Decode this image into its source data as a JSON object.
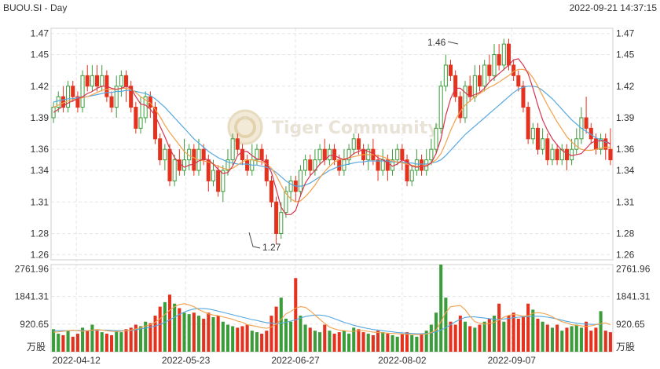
{
  "header": {
    "symbol": "BUOU.SI - Day",
    "timestamp": "2022-09-21 14:37:15"
  },
  "watermark": "Tiger Community",
  "price_axis": {
    "ticks": [
      "1.47",
      "1.45",
      "1.42",
      "1.39",
      "1.36",
      "1.34",
      "1.31",
      "1.28",
      "1.26"
    ]
  },
  "volume_axis": {
    "ticks": [
      "2761.96",
      "1841.31",
      "920.65"
    ],
    "unit": "万股"
  },
  "date_axis": {
    "ticks": [
      "2022-04-12",
      "2022-05-23",
      "2022-06-27",
      "2022-08-02",
      "2022-09-07"
    ]
  },
  "annotations": {
    "high_label": "1.46",
    "low_label": "1.27"
  },
  "colors": {
    "up": "#3a9d3a",
    "down": "#e4321e",
    "ma5": "#d7344e",
    "ma10": "#f2a04a",
    "ma20": "#55a8e0"
  },
  "chart_data": {
    "type": "candlestick",
    "title": "BUOU.SI - Day",
    "price_range": [
      1.255,
      1.475
    ],
    "volume_range": [
      0,
      2900
    ],
    "volume_unit": "万股",
    "candles": [
      [
        1.39,
        1.4,
        1.385,
        1.405,
        750
      ],
      [
        1.4,
        1.41,
        1.395,
        1.415,
        600
      ],
      [
        1.41,
        1.4,
        1.395,
        1.42,
        550
      ],
      [
        1.4,
        1.42,
        1.395,
        1.425,
        700
      ],
      [
        1.42,
        1.41,
        1.405,
        1.425,
        500
      ],
      [
        1.41,
        1.4,
        1.395,
        1.415,
        600
      ],
      [
        1.4,
        1.43,
        1.395,
        1.435,
        800
      ],
      [
        1.43,
        1.42,
        1.415,
        1.44,
        700
      ],
      [
        1.42,
        1.43,
        1.415,
        1.44,
        900
      ],
      [
        1.43,
        1.42,
        1.415,
        1.44,
        700
      ],
      [
        1.42,
        1.43,
        1.415,
        1.44,
        650
      ],
      [
        1.43,
        1.41,
        1.405,
        1.435,
        600
      ],
      [
        1.41,
        1.4,
        1.395,
        1.415,
        550
      ],
      [
        1.4,
        1.42,
        1.39,
        1.43,
        700
      ],
      [
        1.42,
        1.43,
        1.41,
        1.435,
        650
      ],
      [
        1.43,
        1.42,
        1.405,
        1.435,
        750
      ],
      [
        1.42,
        1.4,
        1.395,
        1.425,
        800
      ],
      [
        1.4,
        1.38,
        1.375,
        1.405,
        900
      ],
      [
        1.38,
        1.39,
        1.375,
        1.41,
        850
      ],
      [
        1.39,
        1.41,
        1.385,
        1.415,
        1000
      ],
      [
        1.41,
        1.4,
        1.39,
        1.415,
        950
      ],
      [
        1.4,
        1.37,
        1.365,
        1.405,
        1200
      ],
      [
        1.37,
        1.35,
        1.345,
        1.375,
        1500
      ],
      [
        1.35,
        1.36,
        1.34,
        1.365,
        1650
      ],
      [
        1.36,
        1.33,
        1.325,
        1.365,
        1900
      ],
      [
        1.33,
        1.35,
        1.325,
        1.355,
        1600
      ],
      [
        1.35,
        1.34,
        1.335,
        1.36,
        1450
      ],
      [
        1.34,
        1.35,
        1.335,
        1.37,
        1300
      ],
      [
        1.35,
        1.36,
        1.34,
        1.365,
        1250
      ],
      [
        1.36,
        1.34,
        1.335,
        1.365,
        1300
      ],
      [
        1.34,
        1.36,
        1.335,
        1.37,
        1200
      ],
      [
        1.36,
        1.35,
        1.345,
        1.365,
        1100
      ],
      [
        1.35,
        1.33,
        1.32,
        1.355,
        1300
      ],
      [
        1.33,
        1.34,
        1.325,
        1.35,
        1150
      ],
      [
        1.34,
        1.32,
        1.315,
        1.345,
        1200
      ],
      [
        1.32,
        1.34,
        1.31,
        1.345,
        1000
      ],
      [
        1.34,
        1.35,
        1.335,
        1.36,
        900
      ],
      [
        1.35,
        1.37,
        1.345,
        1.375,
        850
      ],
      [
        1.37,
        1.36,
        1.355,
        1.375,
        800
      ],
      [
        1.36,
        1.35,
        1.345,
        1.365,
        850
      ],
      [
        1.35,
        1.34,
        1.335,
        1.355,
        900
      ],
      [
        1.34,
        1.35,
        1.335,
        1.365,
        700
      ],
      [
        1.35,
        1.36,
        1.345,
        1.365,
        650
      ],
      [
        1.36,
        1.35,
        1.345,
        1.365,
        600
      ],
      [
        1.35,
        1.33,
        1.325,
        1.355,
        700
      ],
      [
        1.33,
        1.31,
        1.305,
        1.335,
        1200
      ],
      [
        1.31,
        1.28,
        1.27,
        1.315,
        1500
      ],
      [
        1.28,
        1.3,
        1.275,
        1.31,
        1800
      ],
      [
        1.3,
        1.32,
        1.295,
        1.325,
        1100
      ],
      [
        1.32,
        1.33,
        1.31,
        1.335,
        1000
      ],
      [
        1.33,
        1.32,
        1.31,
        1.335,
        2450
      ],
      [
        1.32,
        1.34,
        1.315,
        1.345,
        1200
      ],
      [
        1.34,
        1.35,
        1.335,
        1.355,
        900
      ],
      [
        1.35,
        1.34,
        1.335,
        1.355,
        800
      ],
      [
        1.34,
        1.35,
        1.335,
        1.36,
        700
      ],
      [
        1.35,
        1.36,
        1.345,
        1.365,
        650
      ],
      [
        1.36,
        1.35,
        1.345,
        1.37,
        900
      ],
      [
        1.35,
        1.36,
        1.345,
        1.365,
        700
      ],
      [
        1.36,
        1.35,
        1.345,
        1.365,
        600
      ],
      [
        1.35,
        1.34,
        1.335,
        1.355,
        650
      ],
      [
        1.34,
        1.35,
        1.335,
        1.36,
        700
      ],
      [
        1.35,
        1.36,
        1.345,
        1.365,
        600
      ],
      [
        1.36,
        1.37,
        1.355,
        1.375,
        800
      ],
      [
        1.37,
        1.36,
        1.355,
        1.375,
        750
      ],
      [
        1.36,
        1.35,
        1.345,
        1.365,
        650
      ],
      [
        1.35,
        1.36,
        1.34,
        1.365,
        600
      ],
      [
        1.36,
        1.35,
        1.345,
        1.37,
        550
      ],
      [
        1.35,
        1.34,
        1.33,
        1.355,
        700
      ],
      [
        1.34,
        1.35,
        1.335,
        1.36,
        650
      ],
      [
        1.35,
        1.34,
        1.33,
        1.355,
        600
      ],
      [
        1.34,
        1.35,
        1.335,
        1.36,
        550
      ],
      [
        1.35,
        1.36,
        1.345,
        1.365,
        500
      ],
      [
        1.36,
        1.35,
        1.34,
        1.365,
        600
      ],
      [
        1.35,
        1.33,
        1.325,
        1.355,
        650
      ],
      [
        1.33,
        1.34,
        1.325,
        1.345,
        550
      ],
      [
        1.34,
        1.35,
        1.335,
        1.36,
        500
      ],
      [
        1.35,
        1.34,
        1.335,
        1.355,
        600
      ],
      [
        1.34,
        1.35,
        1.335,
        1.36,
        700
      ],
      [
        1.35,
        1.36,
        1.345,
        1.37,
        900
      ],
      [
        1.36,
        1.38,
        1.355,
        1.385,
        1300
      ],
      [
        1.38,
        1.42,
        1.375,
        1.425,
        2900
      ],
      [
        1.42,
        1.44,
        1.415,
        1.45,
        1800
      ],
      [
        1.44,
        1.43,
        1.425,
        1.445,
        1000
      ],
      [
        1.43,
        1.41,
        1.405,
        1.435,
        900
      ],
      [
        1.41,
        1.39,
        1.385,
        1.415,
        1200
      ],
      [
        1.39,
        1.42,
        1.385,
        1.425,
        1000
      ],
      [
        1.42,
        1.41,
        1.405,
        1.43,
        850
      ],
      [
        1.41,
        1.43,
        1.405,
        1.44,
        800
      ],
      [
        1.43,
        1.42,
        1.415,
        1.44,
        900
      ],
      [
        1.42,
        1.44,
        1.415,
        1.445,
        1000
      ],
      [
        1.44,
        1.43,
        1.425,
        1.45,
        1100
      ],
      [
        1.43,
        1.45,
        1.425,
        1.46,
        1200
      ],
      [
        1.45,
        1.44,
        1.435,
        1.46,
        1600
      ],
      [
        1.44,
        1.46,
        1.435,
        1.465,
        1000
      ],
      [
        1.46,
        1.44,
        1.435,
        1.465,
        1200
      ],
      [
        1.44,
        1.43,
        1.425,
        1.445,
        1300
      ],
      [
        1.43,
        1.42,
        1.415,
        1.435,
        1100
      ],
      [
        1.42,
        1.4,
        1.395,
        1.425,
        1200
      ],
      [
        1.4,
        1.37,
        1.365,
        1.405,
        1600
      ],
      [
        1.37,
        1.38,
        1.365,
        1.385,
        1400
      ],
      [
        1.38,
        1.36,
        1.355,
        1.385,
        1100
      ],
      [
        1.36,
        1.37,
        1.355,
        1.38,
        1000
      ],
      [
        1.37,
        1.35,
        1.345,
        1.375,
        900
      ],
      [
        1.35,
        1.36,
        1.345,
        1.365,
        800
      ],
      [
        1.36,
        1.35,
        1.345,
        1.365,
        900
      ],
      [
        1.35,
        1.36,
        1.345,
        1.365,
        700
      ],
      [
        1.36,
        1.35,
        1.34,
        1.365,
        800
      ],
      [
        1.35,
        1.36,
        1.345,
        1.37,
        850
      ],
      [
        1.36,
        1.37,
        1.355,
        1.38,
        900
      ],
      [
        1.37,
        1.39,
        1.365,
        1.4,
        800
      ],
      [
        1.39,
        1.38,
        1.375,
        1.41,
        1000
      ],
      [
        1.38,
        1.37,
        1.365,
        1.385,
        700
      ],
      [
        1.37,
        1.36,
        1.355,
        1.375,
        800
      ],
      [
        1.36,
        1.37,
        1.355,
        1.375,
        1350
      ],
      [
        1.37,
        1.36,
        1.35,
        1.375,
        700
      ],
      [
        1.36,
        1.35,
        1.345,
        1.38,
        650
      ]
    ],
    "ma5": [
      1.395,
      1.398,
      1.401,
      1.404,
      1.406,
      1.408,
      1.41,
      1.413,
      1.415,
      1.418,
      1.42,
      1.42,
      1.418,
      1.417,
      1.418,
      1.42,
      1.418,
      1.41,
      1.403,
      1.402,
      1.398,
      1.392,
      1.382,
      1.372,
      1.361,
      1.352,
      1.347,
      1.343,
      1.345,
      1.346,
      1.349,
      1.351,
      1.35,
      1.346,
      1.341,
      1.337,
      1.338,
      1.344,
      1.354,
      1.358,
      1.358,
      1.354,
      1.351,
      1.35,
      1.347,
      1.338,
      1.322,
      1.305,
      1.298,
      1.298,
      1.302,
      1.316,
      1.328,
      1.335,
      1.34,
      1.346,
      1.35,
      1.354,
      1.354,
      1.352,
      1.35,
      1.352,
      1.356,
      1.358,
      1.36,
      1.358,
      1.356,
      1.352,
      1.35,
      1.347,
      1.344,
      1.346,
      1.35,
      1.348,
      1.344,
      1.343,
      1.344,
      1.344,
      1.347,
      1.356,
      1.37,
      1.392,
      1.408,
      1.418,
      1.418,
      1.414,
      1.41,
      1.412,
      1.414,
      1.418,
      1.424,
      1.428,
      1.432,
      1.436,
      1.44,
      1.445,
      1.446,
      1.44,
      1.432,
      1.418,
      1.402,
      1.388,
      1.378,
      1.37,
      1.364,
      1.359,
      1.356,
      1.354,
      1.355,
      1.356,
      1.361,
      1.366,
      1.368,
      1.368,
      1.368,
      1.365
    ],
    "ma10": [
      1.4,
      1.402,
      1.404,
      1.406,
      1.407,
      1.408,
      1.409,
      1.41,
      1.412,
      1.414,
      1.416,
      1.417,
      1.417,
      1.417,
      1.418,
      1.418,
      1.417,
      1.414,
      1.41,
      1.407,
      1.404,
      1.398,
      1.391,
      1.383,
      1.376,
      1.37,
      1.364,
      1.358,
      1.354,
      1.352,
      1.35,
      1.349,
      1.348,
      1.346,
      1.344,
      1.342,
      1.341,
      1.342,
      1.345,
      1.348,
      1.35,
      1.35,
      1.349,
      1.348,
      1.346,
      1.342,
      1.335,
      1.326,
      1.318,
      1.313,
      1.31,
      1.311,
      1.315,
      1.32,
      1.326,
      1.333,
      1.339,
      1.344,
      1.348,
      1.35,
      1.351,
      1.352,
      1.353,
      1.354,
      1.355,
      1.355,
      1.355,
      1.354,
      1.353,
      1.351,
      1.349,
      1.348,
      1.347,
      1.346,
      1.345,
      1.344,
      1.344,
      1.345,
      1.347,
      1.35,
      1.356,
      1.366,
      1.378,
      1.388,
      1.396,
      1.402,
      1.406,
      1.41,
      1.413,
      1.416,
      1.419,
      1.421,
      1.424,
      1.427,
      1.43,
      1.434,
      1.436,
      1.436,
      1.434,
      1.428,
      1.42,
      1.411,
      1.402,
      1.394,
      1.386,
      1.379,
      1.372,
      1.367,
      1.363,
      1.36,
      1.359,
      1.359,
      1.36,
      1.361,
      1.362,
      1.362
    ],
    "ma20": [
      1.405,
      1.406,
      1.407,
      1.408,
      1.408,
      1.409,
      1.41,
      1.41,
      1.411,
      1.412,
      1.413,
      1.414,
      1.414,
      1.415,
      1.415,
      1.416,
      1.416,
      1.415,
      1.414,
      1.413,
      1.411,
      1.408,
      1.404,
      1.4,
      1.395,
      1.39,
      1.385,
      1.38,
      1.375,
      1.37,
      1.366,
      1.362,
      1.358,
      1.355,
      1.352,
      1.35,
      1.348,
      1.347,
      1.346,
      1.346,
      1.346,
      1.345,
      1.345,
      1.344,
      1.343,
      1.341,
      1.338,
      1.334,
      1.33,
      1.327,
      1.325,
      1.325,
      1.326,
      1.328,
      1.331,
      1.334,
      1.337,
      1.34,
      1.342,
      1.344,
      1.345,
      1.346,
      1.347,
      1.348,
      1.348,
      1.349,
      1.349,
      1.349,
      1.349,
      1.349,
      1.348,
      1.348,
      1.348,
      1.347,
      1.347,
      1.346,
      1.346,
      1.346,
      1.347,
      1.348,
      1.35,
      1.354,
      1.359,
      1.364,
      1.369,
      1.374,
      1.378,
      1.382,
      1.386,
      1.39,
      1.394,
      1.398,
      1.402,
      1.406,
      1.41,
      1.414,
      1.417,
      1.419,
      1.42,
      1.42,
      1.419,
      1.416,
      1.412,
      1.408,
      1.403,
      1.398,
      1.393,
      1.388,
      1.384,
      1.38,
      1.377,
      1.374,
      1.371,
      1.369,
      1.367,
      1.365
    ],
    "vol_ma5": [
      650,
      660,
      680,
      700,
      720,
      700,
      680,
      700,
      720,
      740,
      720,
      700,
      680,
      670,
      680,
      700,
      720,
      760,
      800,
      860,
      900,
      980,
      1100,
      1240,
      1380,
      1500,
      1570,
      1600,
      1560,
      1500,
      1400,
      1330,
      1260,
      1220,
      1200,
      1160,
      1120,
      1080,
      1020,
      980,
      900,
      870,
      840,
      800,
      780,
      820,
      920,
      1080,
      1260,
      1340,
      1450,
      1500,
      1480,
      1360,
      1220,
      1080,
      940,
      820,
      760,
      720,
      700,
      680,
      680,
      700,
      700,
      680,
      650,
      640,
      630,
      620,
      610,
      600,
      590,
      580,
      570,
      570,
      575,
      590,
      640,
      720,
      1000,
      1300,
      1500,
      1520,
      1540,
      1400,
      1180,
      1000,
      950,
      920,
      940,
      980,
      1060,
      1150,
      1210,
      1240,
      1220,
      1180,
      1200,
      1280,
      1300,
      1280,
      1240,
      1160,
      1080,
      1000,
      960,
      900,
      880,
      860,
      840,
      860,
      900,
      940,
      960,
      900
    ],
    "vol_ma10": [
      700,
      700,
      700,
      700,
      710,
      710,
      700,
      700,
      710,
      720,
      720,
      720,
      710,
      700,
      700,
      700,
      710,
      730,
      760,
      790,
      820,
      860,
      910,
      980,
      1060,
      1150,
      1240,
      1320,
      1380,
      1420,
      1440,
      1440,
      1420,
      1390,
      1350,
      1310,
      1270,
      1230,
      1190,
      1150,
      1110,
      1070,
      1040,
      1000,
      970,
      950,
      940,
      950,
      980,
      1020,
      1060,
      1120,
      1170,
      1200,
      1220,
      1220,
      1200,
      1160,
      1100,
      1040,
      980,
      930,
      880,
      840,
      800,
      770,
      740,
      720,
      700,
      680,
      660,
      640,
      630,
      620,
      610,
      600,
      600,
      610,
      630,
      660,
      720,
      800,
      900,
      1000,
      1080,
      1140,
      1160,
      1160,
      1140,
      1120,
      1100,
      1080,
      1080,
      1090,
      1110,
      1130,
      1150,
      1160,
      1170,
      1180,
      1180,
      1170,
      1150,
      1120,
      1090,
      1050,
      1010,
      980,
      950,
      930,
      920,
      910,
      910,
      900
    ]
  }
}
